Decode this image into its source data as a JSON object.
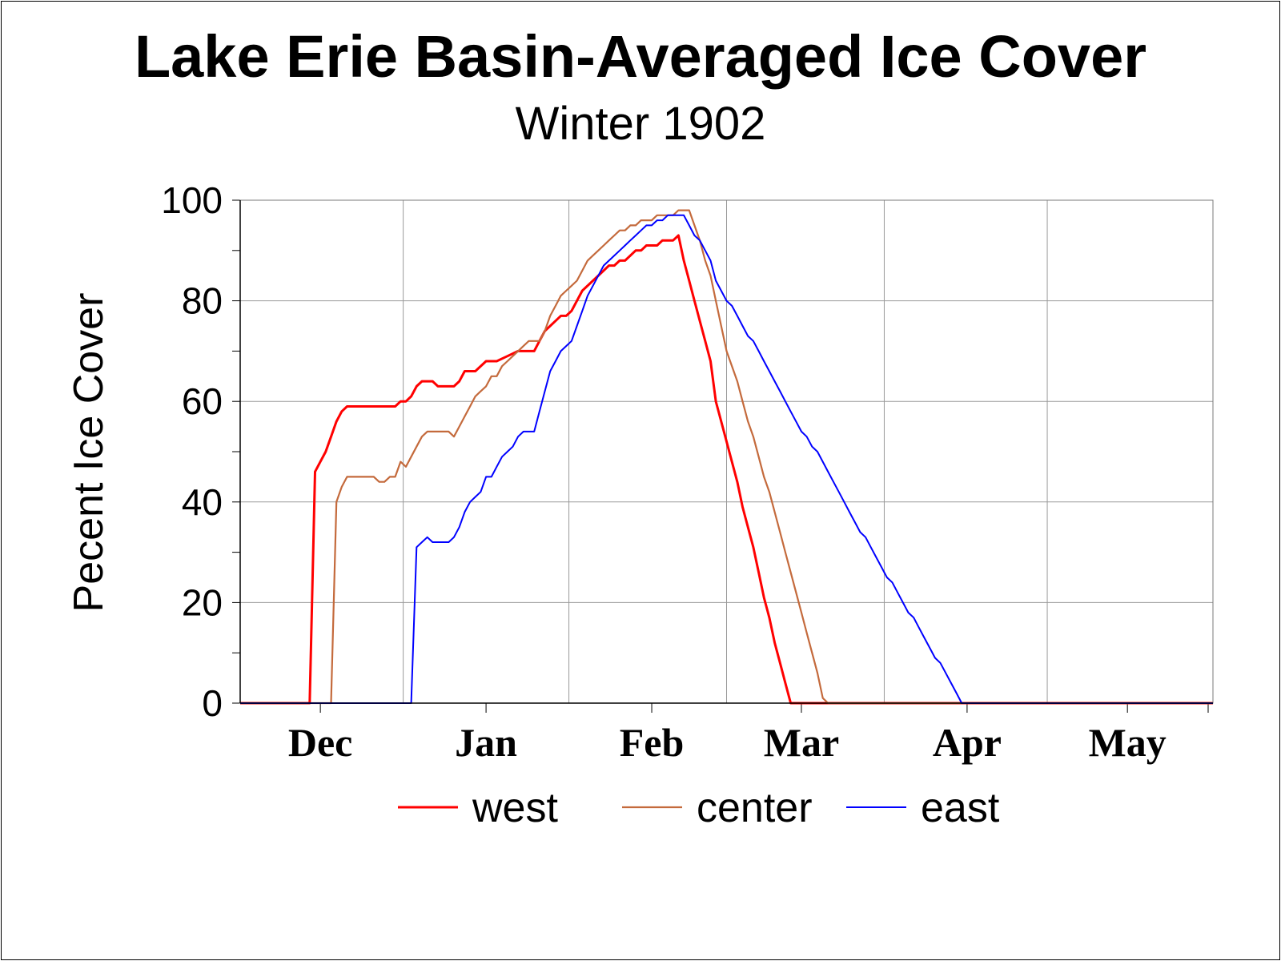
{
  "chart_data": {
    "type": "line",
    "title": "Lake Erie Basin-Averaged Ice Cover",
    "subtitle": "Winter 1902",
    "ylabel": "Pecent Ice Cover",
    "xlabel": "",
    "ylim": [
      0,
      100
    ],
    "yticks": [
      0,
      20,
      40,
      60,
      80,
      100
    ],
    "x_unit": "days since Nov 15",
    "xlim": [
      0,
      182
    ],
    "month_ticks": [
      {
        "label": "Dec",
        "day": 15
      },
      {
        "label": "Jan",
        "day": 46
      },
      {
        "label": "Feb",
        "day": 77
      },
      {
        "label": "Mar",
        "day": 105
      },
      {
        "label": "Apr",
        "day": 136
      },
      {
        "label": "May",
        "day": 166
      }
    ],
    "grid": true,
    "legend_position": "bottom",
    "series": [
      {
        "name": "west",
        "color": "#ff0000",
        "points": [
          [
            0,
            0
          ],
          [
            13,
            0
          ],
          [
            14,
            46
          ],
          [
            15,
            48
          ],
          [
            16,
            50
          ],
          [
            17,
            53
          ],
          [
            18,
            56
          ],
          [
            19,
            58
          ],
          [
            20,
            59
          ],
          [
            24,
            59
          ],
          [
            29,
            59
          ],
          [
            30,
            60
          ],
          [
            31,
            60
          ],
          [
            32,
            61
          ],
          [
            33,
            63
          ],
          [
            34,
            64
          ],
          [
            36,
            64
          ],
          [
            37,
            63
          ],
          [
            40,
            63
          ],
          [
            41,
            64
          ],
          [
            42,
            66
          ],
          [
            44,
            66
          ],
          [
            46,
            68
          ],
          [
            48,
            68
          ],
          [
            50,
            69
          ],
          [
            52,
            70
          ],
          [
            54,
            70
          ],
          [
            55,
            70
          ],
          [
            56,
            72
          ],
          [
            57,
            74
          ],
          [
            58,
            75
          ],
          [
            59,
            76
          ],
          [
            60,
            77
          ],
          [
            61,
            77
          ],
          [
            62,
            78
          ],
          [
            63,
            80
          ],
          [
            64,
            82
          ],
          [
            66,
            84
          ],
          [
            68,
            86
          ],
          [
            69,
            87
          ],
          [
            70,
            87
          ],
          [
            71,
            88
          ],
          [
            72,
            88
          ],
          [
            74,
            90
          ],
          [
            75,
            90
          ],
          [
            76,
            91
          ],
          [
            77,
            91
          ],
          [
            78,
            91
          ],
          [
            79,
            92
          ],
          [
            81,
            92
          ],
          [
            82,
            93
          ],
          [
            83,
            88
          ],
          [
            84,
            84
          ],
          [
            85,
            80
          ],
          [
            86,
            76
          ],
          [
            87,
            72
          ],
          [
            88,
            68
          ],
          [
            89,
            60
          ],
          [
            90,
            56
          ],
          [
            91,
            52
          ],
          [
            92,
            48
          ],
          [
            93,
            44
          ],
          [
            94,
            39
          ],
          [
            95,
            35
          ],
          [
            96,
            31
          ],
          [
            97,
            26
          ],
          [
            98,
            21
          ],
          [
            99,
            17
          ],
          [
            100,
            12
          ],
          [
            101,
            8
          ],
          [
            102,
            4
          ],
          [
            103,
            0
          ],
          [
            140,
            0
          ],
          [
            182,
            0
          ]
        ]
      },
      {
        "name": "center",
        "color": "#c46a3c",
        "points": [
          [
            0,
            0
          ],
          [
            17,
            0
          ],
          [
            18,
            40
          ],
          [
            19,
            43
          ],
          [
            20,
            45
          ],
          [
            24,
            45
          ],
          [
            25,
            45
          ],
          [
            26,
            44
          ],
          [
            27,
            44
          ],
          [
            28,
            45
          ],
          [
            29,
            45
          ],
          [
            30,
            48
          ],
          [
            31,
            47
          ],
          [
            32,
            49
          ],
          [
            33,
            51
          ],
          [
            34,
            53
          ],
          [
            35,
            54
          ],
          [
            38,
            54
          ],
          [
            39,
            54
          ],
          [
            40,
            53
          ],
          [
            41,
            55
          ],
          [
            42,
            57
          ],
          [
            43,
            59
          ],
          [
            44,
            61
          ],
          [
            45,
            62
          ],
          [
            46,
            63
          ],
          [
            47,
            65
          ],
          [
            48,
            65
          ],
          [
            49,
            67
          ],
          [
            50,
            68
          ],
          [
            51,
            69
          ],
          [
            52,
            70
          ],
          [
            53,
            71
          ],
          [
            54,
            72
          ],
          [
            56,
            72
          ],
          [
            57,
            74
          ],
          [
            58,
            77
          ],
          [
            59,
            79
          ],
          [
            60,
            81
          ],
          [
            61,
            82
          ],
          [
            62,
            83
          ],
          [
            63,
            84
          ],
          [
            64,
            86
          ],
          [
            65,
            88
          ],
          [
            66,
            89
          ],
          [
            67,
            90
          ],
          [
            68,
            91
          ],
          [
            69,
            92
          ],
          [
            70,
            93
          ],
          [
            71,
            94
          ],
          [
            72,
            94
          ],
          [
            73,
            95
          ],
          [
            74,
            95
          ],
          [
            75,
            96
          ],
          [
            76,
            96
          ],
          [
            77,
            96
          ],
          [
            78,
            97
          ],
          [
            80,
            97
          ],
          [
            81,
            97
          ],
          [
            82,
            98
          ],
          [
            84,
            98
          ],
          [
            85,
            95
          ],
          [
            86,
            92
          ],
          [
            87,
            88
          ],
          [
            88,
            85
          ],
          [
            89,
            80
          ],
          [
            90,
            75
          ],
          [
            91,
            70
          ],
          [
            92,
            67
          ],
          [
            93,
            64
          ],
          [
            94,
            60
          ],
          [
            95,
            56
          ],
          [
            96,
            53
          ],
          [
            97,
            49
          ],
          [
            98,
            45
          ],
          [
            99,
            42
          ],
          [
            100,
            38
          ],
          [
            101,
            34
          ],
          [
            102,
            30
          ],
          [
            103,
            26
          ],
          [
            104,
            22
          ],
          [
            105,
            18
          ],
          [
            106,
            14
          ],
          [
            107,
            10
          ],
          [
            108,
            6
          ],
          [
            109,
            1
          ],
          [
            110,
            0
          ],
          [
            140,
            0
          ],
          [
            182,
            0
          ]
        ]
      },
      {
        "name": "east",
        "color": "#0000ff",
        "points": [
          [
            0,
            0
          ],
          [
            32,
            0
          ],
          [
            33,
            31
          ],
          [
            34,
            32
          ],
          [
            35,
            33
          ],
          [
            36,
            32
          ],
          [
            39,
            32
          ],
          [
            40,
            33
          ],
          [
            41,
            35
          ],
          [
            42,
            38
          ],
          [
            43,
            40
          ],
          [
            44,
            41
          ],
          [
            45,
            42
          ],
          [
            46,
            45
          ],
          [
            47,
            45
          ],
          [
            48,
            47
          ],
          [
            49,
            49
          ],
          [
            50,
            50
          ],
          [
            51,
            51
          ],
          [
            52,
            53
          ],
          [
            53,
            54
          ],
          [
            55,
            54
          ],
          [
            56,
            58
          ],
          [
            57,
            62
          ],
          [
            58,
            66
          ],
          [
            59,
            68
          ],
          [
            60,
            70
          ],
          [
            61,
            71
          ],
          [
            62,
            72
          ],
          [
            63,
            75
          ],
          [
            64,
            78
          ],
          [
            65,
            81
          ],
          [
            66,
            83
          ],
          [
            67,
            85
          ],
          [
            68,
            87
          ],
          [
            69,
            88
          ],
          [
            70,
            89
          ],
          [
            71,
            90
          ],
          [
            72,
            91
          ],
          [
            73,
            92
          ],
          [
            74,
            93
          ],
          [
            75,
            94
          ],
          [
            76,
            95
          ],
          [
            77,
            95
          ],
          [
            78,
            96
          ],
          [
            79,
            96
          ],
          [
            80,
            97
          ],
          [
            82,
            97
          ],
          [
            83,
            97
          ],
          [
            84,
            95
          ],
          [
            85,
            93
          ],
          [
            86,
            92
          ],
          [
            87,
            90
          ],
          [
            88,
            88
          ],
          [
            89,
            84
          ],
          [
            90,
            82
          ],
          [
            91,
            80
          ],
          [
            92,
            79
          ],
          [
            93,
            77
          ],
          [
            94,
            75
          ],
          [
            95,
            73
          ],
          [
            96,
            72
          ],
          [
            97,
            70
          ],
          [
            98,
            68
          ],
          [
            99,
            66
          ],
          [
            100,
            64
          ],
          [
            101,
            62
          ],
          [
            102,
            60
          ],
          [
            103,
            58
          ],
          [
            104,
            56
          ],
          [
            105,
            54
          ],
          [
            106,
            53
          ],
          [
            107,
            51
          ],
          [
            108,
            50
          ],
          [
            109,
            48
          ],
          [
            110,
            46
          ],
          [
            111,
            44
          ],
          [
            112,
            42
          ],
          [
            113,
            40
          ],
          [
            114,
            38
          ],
          [
            115,
            36
          ],
          [
            116,
            34
          ],
          [
            117,
            33
          ],
          [
            118,
            31
          ],
          [
            119,
            29
          ],
          [
            120,
            27
          ],
          [
            121,
            25
          ],
          [
            122,
            24
          ],
          [
            123,
            22
          ],
          [
            124,
            20
          ],
          [
            125,
            18
          ],
          [
            126,
            17
          ],
          [
            127,
            15
          ],
          [
            128,
            13
          ],
          [
            129,
            11
          ],
          [
            130,
            9
          ],
          [
            131,
            8
          ],
          [
            132,
            6
          ],
          [
            133,
            4
          ],
          [
            134,
            2
          ],
          [
            135,
            0
          ],
          [
            182,
            0
          ]
        ]
      }
    ]
  }
}
